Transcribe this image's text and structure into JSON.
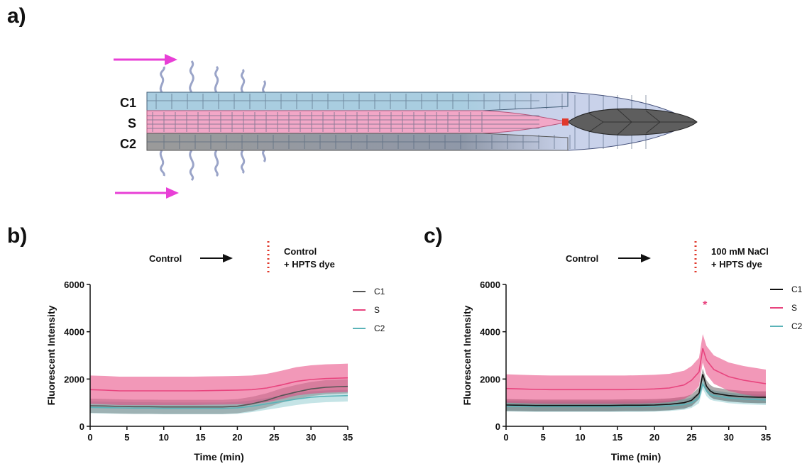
{
  "panels": {
    "a": "a)",
    "b": "b)",
    "c": "c)"
  },
  "diagram": {
    "labels": [
      "C1",
      "S",
      "C2"
    ],
    "colors": {
      "c1": "#a9cde0",
      "s": "#f2a7c7",
      "c2": "#9a9a9a",
      "cap": "#c9d2ea",
      "tip": "#5e5e5e",
      "arrow": "#e83fd6",
      "marker": "#e0392c"
    }
  },
  "chart_data": [
    {
      "type": "line",
      "panel": "b",
      "annotation": {
        "before": "Control",
        "after_line1": "Control",
        "after_line2": "+ HPTS dye"
      },
      "xlabel": "Time (min)",
      "ylabel": "Fluorescent Intensity",
      "xlim": [
        0,
        35
      ],
      "ylim": [
        0,
        6000
      ],
      "xticks": [
        0,
        5,
        10,
        15,
        20,
        25,
        30,
        35
      ],
      "yticks": [
        0,
        2000,
        4000,
        6000
      ],
      "legend_position": "top-right",
      "x": [
        0,
        2,
        4,
        6,
        8,
        10,
        12,
        14,
        16,
        18,
        20,
        22,
        24,
        26,
        28,
        30,
        32,
        34,
        35
      ],
      "series": [
        {
          "name": "C1",
          "color": "#555555",
          "values": [
            870,
            860,
            840,
            830,
            830,
            820,
            820,
            820,
            820,
            820,
            850,
            950,
            1100,
            1300,
            1450,
            1580,
            1650,
            1680,
            1690
          ],
          "band": 300
        },
        {
          "name": "S",
          "color": "#e8447e",
          "values": [
            1550,
            1530,
            1500,
            1500,
            1500,
            1500,
            1500,
            1500,
            1510,
            1520,
            1530,
            1550,
            1620,
            1750,
            1900,
            1980,
            2020,
            2040,
            2050
          ],
          "band": 600
        },
        {
          "name": "C2",
          "color": "#5ab3b8",
          "values": [
            800,
            790,
            780,
            770,
            770,
            760,
            760,
            760,
            760,
            760,
            780,
            850,
            950,
            1050,
            1150,
            1230,
            1270,
            1290,
            1300
          ],
          "band": 250
        }
      ]
    },
    {
      "type": "line",
      "panel": "c",
      "annotation": {
        "before": "Control",
        "after_line1": "100 mM NaCl",
        "after_line2": "+ HPTS dye"
      },
      "peak_marker": "*",
      "xlabel": "Time (min)",
      "ylabel": "Fluorescent Intensity",
      "xlim": [
        0,
        35
      ],
      "ylim": [
        0,
        6000
      ],
      "xticks": [
        0,
        5,
        10,
        15,
        20,
        25,
        30,
        35
      ],
      "yticks": [
        0,
        2000,
        4000,
        6000
      ],
      "legend_position": "top-right",
      "x": [
        0,
        2,
        4,
        6,
        8,
        10,
        12,
        14,
        16,
        18,
        20,
        22,
        24,
        25,
        26,
        26.5,
        27,
        27.5,
        28,
        30,
        32,
        34,
        35
      ],
      "series": [
        {
          "name": "C1",
          "color": "#111111",
          "values": [
            900,
            890,
            880,
            880,
            880,
            880,
            880,
            880,
            890,
            890,
            900,
            930,
            1000,
            1100,
            1400,
            2200,
            1700,
            1500,
            1400,
            1300,
            1250,
            1230,
            1230
          ],
          "band": 250
        },
        {
          "name": "S",
          "color": "#e8447e",
          "values": [
            1600,
            1580,
            1560,
            1550,
            1550,
            1550,
            1550,
            1550,
            1550,
            1560,
            1580,
            1620,
            1750,
            1950,
            2300,
            3300,
            2800,
            2600,
            2400,
            2100,
            1950,
            1850,
            1800
          ],
          "band": 600
        },
        {
          "name": "C2",
          "color": "#5ab3b8",
          "values": [
            850,
            840,
            830,
            830,
            830,
            830,
            830,
            830,
            830,
            830,
            840,
            870,
            920,
            1000,
            1200,
            1800,
            1500,
            1350,
            1300,
            1200,
            1150,
            1130,
            1120
          ],
          "band": 220
        }
      ]
    }
  ]
}
